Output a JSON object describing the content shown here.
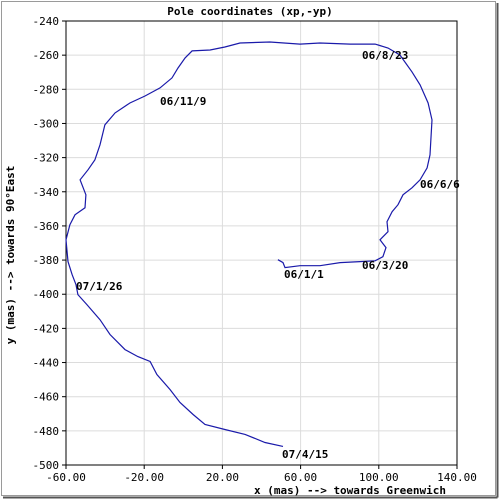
{
  "chart_data": {
    "type": "line",
    "title": "Pole coordinates (xp,-yp)",
    "x_label": "x (mas) --> towards Greenwich",
    "y_label": "y (mas) --> towards 90°East",
    "xlim": [
      -60,
      140
    ],
    "ylim": [
      -500,
      -240
    ],
    "xticks": [
      {
        "value": -60,
        "label": "-60.00"
      },
      {
        "value": -20,
        "label": "-20.00"
      },
      {
        "value": 20,
        "label": "20.00"
      },
      {
        "value": 60,
        "label": "60.00"
      },
      {
        "value": 100,
        "label": "100.00"
      },
      {
        "value": 140,
        "label": "140.00"
      }
    ],
    "yticks": [
      -240,
      -260,
      -280,
      -300,
      -320,
      -340,
      -360,
      -380,
      -400,
      -420,
      -440,
      -460,
      -480,
      -500
    ],
    "grid": true,
    "annotations": [
      "06/8/23",
      "06/11/9",
      "06/6/6",
      "06/3/20",
      "06/1/1",
      "07/1/26",
      "07/4/15"
    ],
    "series": [
      {
        "color": "#1a1aaa",
        "x": [
          48.4,
          51.0,
          52.0,
          59.7,
          69.9,
          80.2,
          90.4,
          98.1,
          102.1,
          103.7,
          100.6,
          104.7,
          104.2,
          106.8,
          109.8,
          112.4,
          117.0,
          121.1,
          124.7,
          126.2,
          127.2,
          125.2,
          121.1,
          117.0,
          110.8,
          104.7,
          98.1,
          85.3,
          69.9,
          59.7,
          44.3,
          29.0,
          21.3,
          13.7,
          4.5,
          0.9,
          -2.7,
          -5.8,
          -11.9,
          -19.6,
          -27.3,
          -34.9,
          -40.1,
          -42.6,
          -45.2,
          -48.7,
          -52.8,
          -49.8,
          -50.3,
          -55.4,
          -58.0,
          -60.0,
          -59.0,
          -56.9,
          -54.9,
          -53.9,
          -49.3,
          -42.6,
          -37.5,
          -29.8,
          -23.2,
          -17.0,
          -13.5,
          -6.8,
          -1.7,
          5.0,
          11.1,
          21.3,
          31.6,
          41.8,
          51.0
        ],
        "values": [
          -379.8,
          -381.5,
          -384.4,
          -383.3,
          -383.3,
          -381.5,
          -380.9,
          -380.4,
          -378.0,
          -372.7,
          -368.1,
          -363.4,
          -357.5,
          -351.7,
          -347.6,
          -341.8,
          -337.7,
          -333.0,
          -326.0,
          -318.4,
          -297.9,
          -288.0,
          -277.4,
          -269.8,
          -259.9,
          -255.8,
          -253.5,
          -253.5,
          -252.9,
          -253.5,
          -252.3,
          -252.9,
          -255.2,
          -257.0,
          -257.5,
          -261.6,
          -267.5,
          -273.3,
          -279.2,
          -283.9,
          -288.0,
          -293.8,
          -300.8,
          -312.5,
          -321.3,
          -327.1,
          -333.0,
          -341.8,
          -349.4,
          -353.5,
          -359.3,
          -368.1,
          -380.9,
          -388.5,
          -394.4,
          -400.2,
          -406.1,
          -414.9,
          -423.6,
          -432.4,
          -436.5,
          -439.4,
          -447.0,
          -455.8,
          -463.4,
          -470.4,
          -476.3,
          -479.2,
          -482.1,
          -486.8,
          -489.1
        ]
      }
    ]
  }
}
